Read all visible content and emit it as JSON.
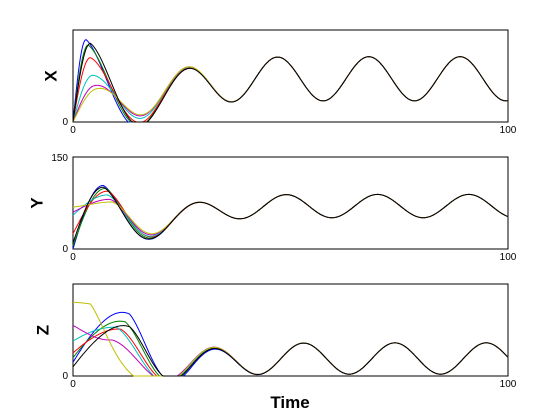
{
  "figure": {
    "xlabel": "Time"
  },
  "chart_data": [
    {
      "type": "line",
      "ylabel": "X",
      "xlim": [
        0,
        100
      ],
      "ylim": [
        0,
        100
      ],
      "x_ticks": [
        0,
        100
      ],
      "y_ticks": [
        0
      ],
      "series_colors": [
        "#0000ff",
        "#008000",
        "#ff0000",
        "#00bfbf",
        "#bf00bf",
        "#bfbf00",
        "#000000"
      ],
      "initial_values": [
        0,
        0,
        0,
        0,
        0,
        0,
        0
      ],
      "first_peak_time": [
        3,
        3.5,
        4,
        4.5,
        5,
        5.5,
        4
      ],
      "first_peak_value": [
        90,
        84,
        70,
        50,
        38,
        34,
        86
      ],
      "convergence": {
        "period": 21,
        "mean": 47,
        "amplitude": 24,
        "first_shared_peak_time": 26,
        "settle_time": 45
      }
    },
    {
      "type": "line",
      "ylabel": "Y",
      "xlim": [
        0,
        100
      ],
      "ylim": [
        0,
        150
      ],
      "x_ticks": [
        0,
        100
      ],
      "y_ticks": [
        0,
        150
      ],
      "series_colors": [
        "#0000ff",
        "#008000",
        "#ff0000",
        "#00bfbf",
        "#bf00bf",
        "#bfbf00",
        "#000000"
      ],
      "initial_values": [
        0,
        5,
        25,
        55,
        60,
        68,
        10
      ],
      "first_peak_time": [
        7,
        7.5,
        8,
        8,
        8.5,
        9,
        7
      ],
      "first_peak_value": [
        105,
        100,
        95,
        88,
        80,
        75,
        102
      ],
      "convergence": {
        "period": 21,
        "mean": 70,
        "amplitude": 19,
        "first_shared_peak_time": 28,
        "settle_time": 45
      }
    },
    {
      "type": "line",
      "ylabel": "Z",
      "xlim": [
        0,
        100
      ],
      "ylim": [
        0,
        100
      ],
      "x_ticks": [
        0,
        100
      ],
      "y_ticks": [
        0
      ],
      "series_colors": [
        "#0000ff",
        "#008000",
        "#ff0000",
        "#00bfbf",
        "#bf00bf",
        "#bfbf00",
        "#000000"
      ],
      "initial_values": [
        15,
        20,
        25,
        38,
        55,
        80,
        10
      ],
      "first_peak_time": [
        13,
        12,
        11,
        10,
        9,
        4,
        13
      ],
      "first_peak_value": [
        78,
        65,
        54,
        56,
        40,
        80,
        60
      ],
      "convergence": {
        "period": 21,
        "mean": 19,
        "amplitude": 17,
        "first_shared_peak_time": 32,
        "settle_time": 50
      }
    }
  ]
}
